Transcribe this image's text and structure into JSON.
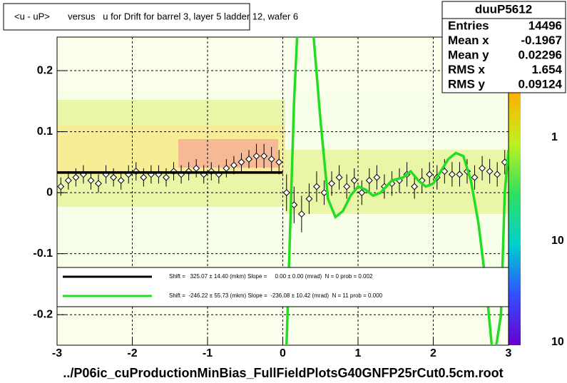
{
  "chart_data": {
    "type": "profile",
    "title": "<u - uP>       versus   u for Drift for barrel 3, layer 5 ladder 12, wafer 6",
    "footer": "../P06ic_cuProductionMinBias_FullFieldPlotsG40GNFP25rCut0.5cm.root",
    "xlim": [
      -3,
      3
    ],
    "ylim": [
      -0.25,
      0.255
    ],
    "xticks": [
      -3,
      -2,
      -1,
      0,
      1,
      2,
      3
    ],
    "yticks": [
      -0.2,
      -0.1,
      0,
      0.1,
      0.2
    ],
    "zticks": [
      "1",
      "10",
      "10"
    ],
    "grid": true,
    "points": {
      "color": "#000000",
      "x": [
        -2.95,
        -2.85,
        -2.75,
        -2.65,
        -2.55,
        -2.45,
        -2.35,
        -2.25,
        -2.15,
        -2.05,
        -1.95,
        -1.85,
        -1.75,
        -1.65,
        -1.55,
        -1.45,
        -1.35,
        -1.25,
        -1.15,
        -1.05,
        -0.95,
        -0.85,
        -0.75,
        -0.65,
        -0.55,
        -0.45,
        -0.35,
        -0.25,
        -0.15,
        -0.05,
        0.05,
        0.15,
        0.25,
        0.35,
        0.45,
        0.55,
        0.65,
        0.75,
        0.85,
        0.95,
        1.05,
        1.15,
        1.25,
        1.35,
        1.45,
        1.55,
        1.65,
        1.75,
        1.85,
        1.95,
        2.05,
        2.15,
        2.25,
        2.35,
        2.45,
        2.55,
        2.65,
        2.75,
        2.85,
        2.95
      ],
      "y": [
        0.01,
        0.02,
        0.025,
        0.03,
        0.02,
        0.015,
        0.03,
        0.025,
        0.02,
        0.03,
        0.035,
        0.025,
        0.03,
        0.03,
        0.025,
        0.035,
        0.03,
        0.035,
        0.04,
        0.03,
        0.035,
        0.03,
        0.04,
        0.045,
        0.05,
        0.055,
        0.06,
        0.06,
        0.055,
        0.05,
        0.0,
        -0.02,
        -0.035,
        -0.01,
        0.01,
        0.0,
        0.015,
        0.025,
        0.01,
        0.02,
        0.0,
        0.02,
        0.025,
        0.01,
        0.015,
        0.02,
        0.03,
        0.01,
        0.02,
        0.03,
        0.025,
        0.035,
        0.03,
        0.03,
        0.035,
        0.025,
        0.04,
        0.035,
        0.03,
        0.05
      ],
      "errors": [
        0.015,
        0.015,
        0.015,
        0.015,
        0.015,
        0.015,
        0.015,
        0.015,
        0.015,
        0.015,
        0.015,
        0.015,
        0.015,
        0.015,
        0.015,
        0.015,
        0.015,
        0.015,
        0.015,
        0.015,
        0.015,
        0.015,
        0.015,
        0.015,
        0.015,
        0.015,
        0.02,
        0.02,
        0.02,
        0.02,
        0.03,
        0.03,
        0.03,
        0.025,
        0.025,
        0.02,
        0.02,
        0.02,
        0.02,
        0.02,
        0.02,
        0.02,
        0.02,
        0.02,
        0.02,
        0.02,
        0.02,
        0.02,
        0.02,
        0.02,
        0.02,
        0.02,
        0.02,
        0.02,
        0.02,
        0.02,
        0.02,
        0.02,
        0.02,
        0.02
      ]
    },
    "fits": [
      {
        "name": "Shift =   325.07 ± 14.40 (mkm) Slope =     0.00 ± 0.00 (mrad)  N = 0 prob = 0.002",
        "color": "#000000",
        "x": [
          -3,
          0
        ],
        "y": [
          0.033,
          0.033
        ]
      },
      {
        "name": "Shift =  -246.22 ± 55.73 (mkm) Slope =  -236.08 ± 10.42 (mrad)  N = 11 prob = 0.000",
        "color": "#22dd22",
        "x": [
          0.05,
          0.1,
          0.15,
          0.2,
          0.3,
          0.4,
          0.5,
          0.6,
          0.7,
          0.8,
          0.9,
          1.0,
          1.1,
          1.2,
          1.3,
          1.45,
          1.6,
          1.7,
          1.8,
          1.9,
          2.0,
          2.1,
          2.2,
          2.3,
          2.4,
          2.5,
          2.6,
          2.7,
          2.8,
          2.9,
          2.95,
          3.0
        ],
        "y": [
          -0.25,
          -0.05,
          0.15,
          0.28,
          0.32,
          0.27,
          0.12,
          -0.01,
          -0.04,
          -0.03,
          -0.005,
          0.01,
          0.005,
          -0.005,
          0.0,
          0.02,
          0.025,
          0.035,
          0.02,
          0.01,
          0.015,
          0.035,
          0.055,
          0.065,
          0.06,
          0.02,
          -0.05,
          -0.15,
          -0.28,
          -0.2,
          0.0,
          0.07
        ]
      }
    ],
    "stats": {
      "title": "duuP5612",
      "rows": [
        {
          "label": "Entries",
          "value": "14496"
        },
        {
          "label": "Mean x",
          "value": "-0.1967"
        },
        {
          "label": "Mean y",
          "value": "0.02296"
        },
        {
          "label": "RMS x",
          "value": "1.654"
        },
        {
          "label": "RMS y",
          "value": "0.09124"
        }
      ]
    }
  }
}
